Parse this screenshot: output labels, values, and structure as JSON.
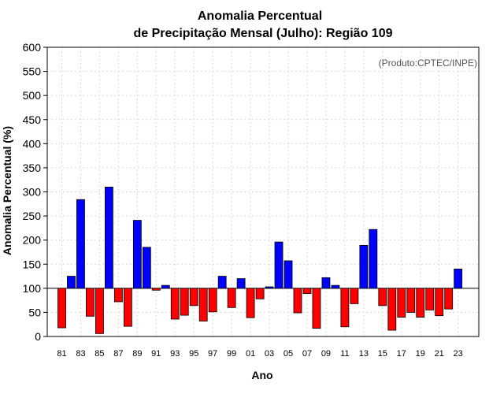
{
  "chart_data": {
    "type": "bar",
    "title_line1": "Anomalia Percentual",
    "title_line2": "de Precipitação Mensal (Julho): Região 109",
    "credit": "(Produto:CPTEC/INPE)",
    "xlabel": "Ano",
    "ylabel": "Anomalia Percentual (%)",
    "ylim": [
      0,
      600
    ],
    "yticks": [
      "0",
      "50",
      "100",
      "150",
      "200",
      "250",
      "300",
      "350",
      "400",
      "450",
      "500",
      "550",
      "600"
    ],
    "baseline": 100,
    "grid": true,
    "colors": {
      "above": "#0000ff",
      "below": "#ff0000"
    },
    "categories": [
      "81",
      "82",
      "83",
      "84",
      "85",
      "86",
      "87",
      "88",
      "89",
      "90",
      "91",
      "92",
      "93",
      "94",
      "95",
      "96",
      "97",
      "98",
      "99",
      "00",
      "01",
      "02",
      "03",
      "04",
      "05",
      "06",
      "07",
      "08",
      "09",
      "10",
      "11",
      "12",
      "13",
      "14",
      "15",
      "16",
      "17",
      "18",
      "19",
      "20",
      "21",
      "22",
      "23"
    ],
    "xtick_labels": [
      "81",
      "83",
      "85",
      "87",
      "89",
      "91",
      "93",
      "95",
      "97",
      "99",
      "01",
      "03",
      "05",
      "07",
      "09",
      "11",
      "13",
      "15",
      "17",
      "19",
      "21",
      "23"
    ],
    "values": [
      18,
      125,
      284,
      42,
      6,
      310,
      72,
      21,
      241,
      185,
      96,
      106,
      36,
      44,
      64,
      32,
      51,
      125,
      60,
      120,
      39,
      78,
      103,
      196,
      157,
      49,
      89,
      17,
      122,
      106,
      20,
      68,
      189,
      222,
      64,
      13,
      40,
      50,
      40,
      55,
      43,
      57,
      140
    ]
  }
}
